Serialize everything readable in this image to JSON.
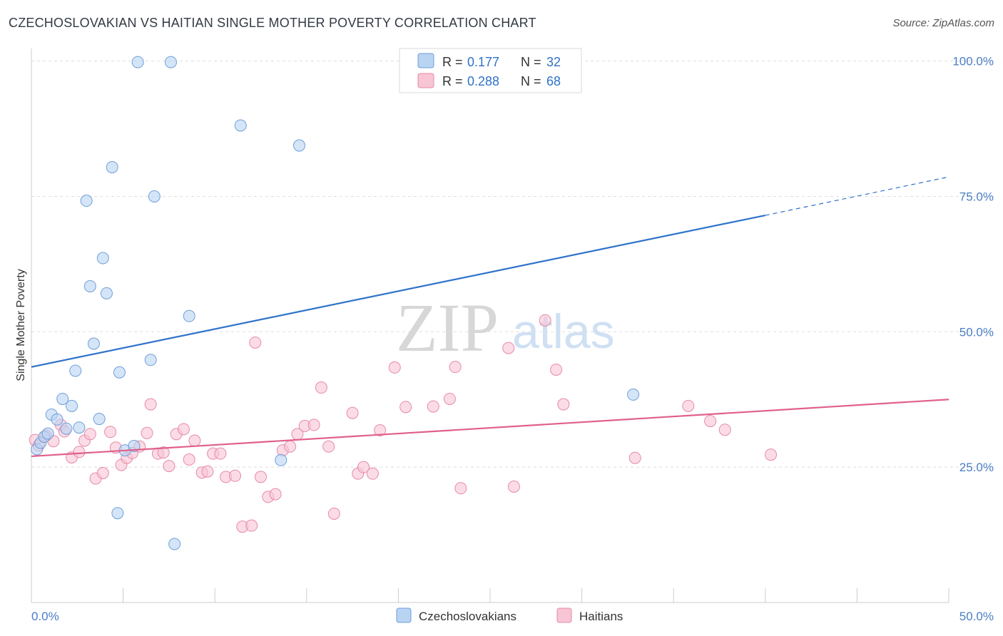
{
  "header": {
    "title": "CZECHOSLOVAKIAN VS HAITIAN SINGLE MOTHER POVERTY CORRELATION CHART",
    "source": "Source: ZipAtlas.com"
  },
  "watermark": {
    "zip": "ZIP",
    "atlas": "atlas"
  },
  "legend_top": {
    "rows": [
      {
        "r_label": "R =",
        "r_value": "0.177",
        "n_label": "N =",
        "n_value": "32"
      },
      {
        "r_label": "R =",
        "r_value": "0.288",
        "n_label": "N =",
        "n_value": "68"
      }
    ]
  },
  "legend_bottom": {
    "items": [
      "Czechoslovakians",
      "Haitians"
    ]
  },
  "chart_data": {
    "type": "scatter",
    "title": "CZECHOSLOVAKIAN VS HAITIAN SINGLE MOTHER POVERTY CORRELATION CHART",
    "xlabel": "",
    "ylabel": "Single Mother Poverty",
    "xlim": [
      0,
      50
    ],
    "ylim": [
      0,
      101
    ],
    "x_tick_labels": [
      "0.0%",
      "50.0%"
    ],
    "y_tick_labels": [
      "25.0%",
      "50.0%",
      "75.0%",
      "100.0%"
    ],
    "y_ticks": [
      25,
      50,
      75,
      100
    ],
    "grid": true,
    "legend_placement": "top-center",
    "colors": {
      "blue_fill": "#b9d3f3",
      "blue_stroke": "#6f9fd8",
      "blue_line": "#2f72c9",
      "pink_fill": "#f8c5d5",
      "pink_stroke": "#e68aa8",
      "pink_line": "#e0608a",
      "axis_label": "#4a7ec4"
    },
    "series": [
      {
        "name": "Czechoslovakians",
        "color": "blue",
        "r": 0.177,
        "n": 32,
        "trend": {
          "x0": 0,
          "y0": 43.5,
          "x1": 40,
          "y1": 71.5,
          "dashed_to_x": 50,
          "dashed_to_y": 78.6
        },
        "points": [
          [
            0.3,
            28.3
          ],
          [
            0.5,
            29.5
          ],
          [
            0.7,
            30.6
          ],
          [
            0.9,
            31.2
          ],
          [
            1.1,
            34.7
          ],
          [
            1.4,
            33.8
          ],
          [
            1.7,
            37.6
          ],
          [
            1.9,
            32.1
          ],
          [
            2.2,
            36.3
          ],
          [
            2.4,
            42.8
          ],
          [
            2.6,
            32.3
          ],
          [
            3.2,
            58.4
          ],
          [
            3.4,
            47.8
          ],
          [
            3.7,
            33.9
          ],
          [
            3.9,
            63.6
          ],
          [
            4.1,
            57.1
          ],
          [
            4.4,
            80.4
          ],
          [
            4.7,
            16.5
          ],
          [
            4.8,
            42.5
          ],
          [
            5.1,
            28.1
          ],
          [
            5.6,
            28.9
          ],
          [
            5.8,
            99.8
          ],
          [
            6.5,
            44.8
          ],
          [
            6.7,
            75.0
          ],
          [
            7.6,
            99.8
          ],
          [
            7.8,
            10.8
          ],
          [
            8.6,
            52.9
          ],
          [
            11.4,
            88.1
          ],
          [
            13.6,
            26.3
          ],
          [
            14.6,
            84.4
          ],
          [
            32.8,
            38.4
          ],
          [
            3.0,
            74.2
          ]
        ]
      },
      {
        "name": "Haitians",
        "color": "pink",
        "r": 0.288,
        "n": 68,
        "trend": {
          "x0": 0,
          "y0": 27.0,
          "x1": 50,
          "y1": 37.5
        },
        "points": [
          [
            0.2,
            30.0
          ],
          [
            0.4,
            29.0
          ],
          [
            0.8,
            30.8
          ],
          [
            1.2,
            29.8
          ],
          [
            1.6,
            32.8
          ],
          [
            1.8,
            31.6
          ],
          [
            2.2,
            26.8
          ],
          [
            2.6,
            27.8
          ],
          [
            2.9,
            29.9
          ],
          [
            3.2,
            31.1
          ],
          [
            3.5,
            22.9
          ],
          [
            3.9,
            23.9
          ],
          [
            4.3,
            31.5
          ],
          [
            4.6,
            28.6
          ],
          [
            4.9,
            25.4
          ],
          [
            5.2,
            26.7
          ],
          [
            5.5,
            27.6
          ],
          [
            5.9,
            28.8
          ],
          [
            6.3,
            31.3
          ],
          [
            6.5,
            36.6
          ],
          [
            6.9,
            27.5
          ],
          [
            7.2,
            27.7
          ],
          [
            7.5,
            25.2
          ],
          [
            7.9,
            31.1
          ],
          [
            8.3,
            32.0
          ],
          [
            8.6,
            26.4
          ],
          [
            8.9,
            29.9
          ],
          [
            9.3,
            24.0
          ],
          [
            9.6,
            24.2
          ],
          [
            9.9,
            27.5
          ],
          [
            10.3,
            27.5
          ],
          [
            10.6,
            23.2
          ],
          [
            11.1,
            23.4
          ],
          [
            11.5,
            14.0
          ],
          [
            12.0,
            14.2
          ],
          [
            12.2,
            48.0
          ],
          [
            12.5,
            23.2
          ],
          [
            12.9,
            19.5
          ],
          [
            13.3,
            20.0
          ],
          [
            13.7,
            28.1
          ],
          [
            14.1,
            28.8
          ],
          [
            14.5,
            31.1
          ],
          [
            14.9,
            32.6
          ],
          [
            15.4,
            32.8
          ],
          [
            15.8,
            39.7
          ],
          [
            16.2,
            28.8
          ],
          [
            16.5,
            16.4
          ],
          [
            17.5,
            35.0
          ],
          [
            17.8,
            23.8
          ],
          [
            18.1,
            25.0
          ],
          [
            18.6,
            23.8
          ],
          [
            19.0,
            31.8
          ],
          [
            19.8,
            43.4
          ],
          [
            20.4,
            36.1
          ],
          [
            21.9,
            36.2
          ],
          [
            22.8,
            37.6
          ],
          [
            23.1,
            43.5
          ],
          [
            23.4,
            21.1
          ],
          [
            26.0,
            47.0
          ],
          [
            26.3,
            21.4
          ],
          [
            28.0,
            52.1
          ],
          [
            28.6,
            43.0
          ],
          [
            29.0,
            36.6
          ],
          [
            32.9,
            26.7
          ],
          [
            35.8,
            36.3
          ],
          [
            37.0,
            33.5
          ],
          [
            37.8,
            31.9
          ],
          [
            40.3,
            27.3
          ]
        ]
      }
    ]
  }
}
